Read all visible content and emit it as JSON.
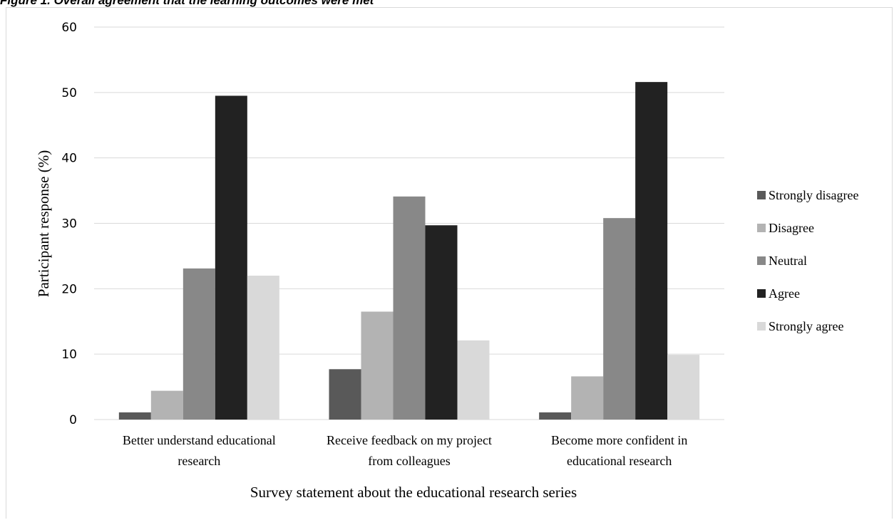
{
  "figure_caption": "Figure 1. Overall agreement that the learning outcomes were met",
  "colors": {
    "strongly_disagree": "#595959",
    "disagree": "#b3b3b3",
    "neutral": "#888888",
    "agree": "#222222",
    "strongly_agree": "#d9d9d9",
    "gridline": "#d9d9d9"
  },
  "chart_data": {
    "type": "bar",
    "title": "",
    "xlabel": "Survey statement about the educational research series",
    "ylabel": "Participant response (%)",
    "ylim": [
      0,
      60
    ],
    "yticks": [
      "0",
      "10",
      "20",
      "30",
      "40",
      "50",
      "60"
    ],
    "grid": true,
    "legend_position": "right",
    "categories": [
      [
        "Better understand educational",
        "research"
      ],
      [
        "Receive feedback on my project",
        "from colleagues"
      ],
      [
        "Become more confident in",
        "educational research"
      ]
    ],
    "series": [
      {
        "name": "Strongly disagree",
        "color": "#595959",
        "values": [
          1.1,
          7.7,
          1.1
        ]
      },
      {
        "name": "Disagree",
        "color": "#b3b3b3",
        "values": [
          4.4,
          16.5,
          6.6
        ]
      },
      {
        "name": "Neutral",
        "color": "#888888",
        "values": [
          23.1,
          34.1,
          30.8
        ]
      },
      {
        "name": "Agree",
        "color": "#222222",
        "values": [
          49.5,
          29.7,
          51.6
        ]
      },
      {
        "name": "Strongly agree",
        "color": "#d9d9d9",
        "values": [
          22.0,
          12.1,
          9.9
        ]
      }
    ]
  }
}
